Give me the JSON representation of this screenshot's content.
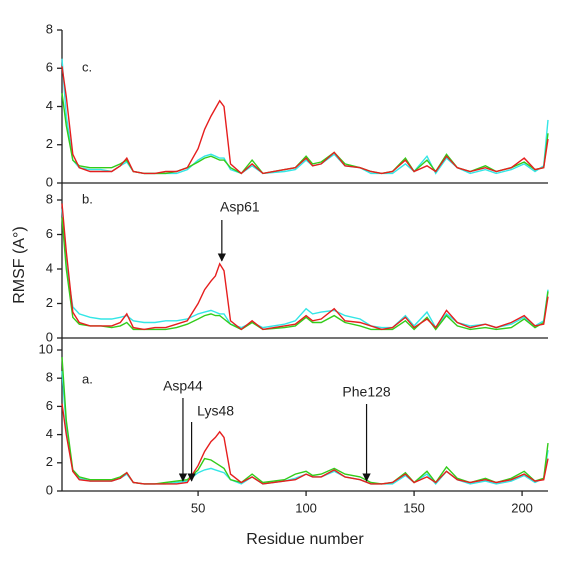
{
  "chart_data": [
    {
      "type": "line",
      "title": "c.",
      "x": [
        -13,
        -11,
        -8,
        -5,
        0,
        5,
        10,
        14,
        17,
        20,
        25,
        30,
        35,
        40,
        45,
        50,
        53,
        56,
        58,
        60,
        62,
        65,
        70,
        75,
        80,
        90,
        95,
        100,
        103,
        107,
        113,
        118,
        125,
        130,
        135,
        140,
        146,
        150,
        156,
        160,
        165,
        170,
        176,
        183,
        188,
        195,
        201,
        206,
        210,
        212
      ],
      "xlim": [
        -13,
        212
      ],
      "ylim": [
        0,
        8
      ],
      "yticks": [
        0,
        2,
        4,
        6,
        8
      ],
      "series": [
        {
          "color": "#33e6e6",
          "values": [
            6.5,
            3.5,
            1.2,
            0.8,
            0.7,
            0.7,
            0.6,
            0.9,
            1.1,
            0.6,
            0.5,
            0.5,
            0.5,
            0.5,
            0.7,
            1.2,
            1.4,
            1.5,
            1.4,
            1.3,
            1.3,
            0.7,
            0.5,
            0.9,
            0.5,
            0.6,
            0.7,
            1.2,
            0.9,
            1.0,
            1.5,
            0.9,
            0.8,
            0.5,
            0.5,
            0.5,
            1.0,
            0.6,
            1.4,
            0.5,
            1.3,
            0.8,
            0.5,
            0.7,
            0.5,
            0.7,
            1.0,
            0.6,
            0.9,
            3.3
          ]
        },
        {
          "color": "#33cc1a",
          "values": [
            4.7,
            3.0,
            1.2,
            0.9,
            0.8,
            0.8,
            0.8,
            1.0,
            1.2,
            0.6,
            0.5,
            0.5,
            0.5,
            0.6,
            0.8,
            1.1,
            1.3,
            1.4,
            1.3,
            1.2,
            1.2,
            0.8,
            0.5,
            1.2,
            0.5,
            0.7,
            0.8,
            1.4,
            1.0,
            1.1,
            1.6,
            1.0,
            0.8,
            0.6,
            0.5,
            0.6,
            1.3,
            0.6,
            1.2,
            0.6,
            1.5,
            0.8,
            0.6,
            0.9,
            0.6,
            0.8,
            1.1,
            0.7,
            0.8,
            2.6
          ]
        },
        {
          "color": "#e61e1e",
          "values": [
            6.1,
            4.5,
            1.5,
            0.8,
            0.6,
            0.6,
            0.6,
            0.9,
            1.3,
            0.6,
            0.5,
            0.5,
            0.6,
            0.6,
            0.8,
            1.8,
            2.8,
            3.5,
            3.9,
            4.3,
            4.0,
            1.0,
            0.5,
            1.0,
            0.5,
            0.7,
            0.8,
            1.3,
            0.9,
            1.0,
            1.6,
            0.9,
            0.8,
            0.6,
            0.5,
            0.6,
            1.2,
            0.6,
            0.9,
            0.6,
            1.4,
            0.8,
            0.6,
            0.8,
            0.6,
            0.8,
            1.3,
            0.7,
            0.8,
            2.3
          ]
        }
      ]
    },
    {
      "type": "line",
      "title": "b.",
      "ylabel": "RMSF (A°)",
      "x": [
        -13,
        -11,
        -8,
        -5,
        0,
        5,
        10,
        14,
        17,
        20,
        25,
        30,
        35,
        40,
        45,
        50,
        53,
        56,
        58,
        60,
        62,
        65,
        70,
        75,
        80,
        90,
        95,
        100,
        103,
        107,
        113,
        118,
        125,
        130,
        135,
        140,
        146,
        150,
        156,
        160,
        165,
        170,
        176,
        183,
        188,
        195,
        201,
        206,
        210,
        212
      ],
      "xlim": [
        -13,
        212
      ],
      "ylim": [
        0,
        8
      ],
      "yticks": [
        0,
        2,
        4,
        6,
        8
      ],
      "annotations": [
        {
          "text": "Asp61",
          "x": 61,
          "y": 4.3
        }
      ],
      "series": [
        {
          "color": "#33e6e6",
          "values": [
            7.5,
            4.2,
            1.8,
            1.4,
            1.2,
            1.1,
            1.1,
            1.2,
            1.3,
            1.0,
            0.9,
            0.9,
            1.0,
            1.0,
            1.1,
            1.4,
            1.5,
            1.6,
            1.5,
            1.4,
            1.4,
            0.8,
            0.6,
            0.9,
            0.6,
            0.8,
            1.0,
            1.7,
            1.4,
            1.5,
            1.6,
            1.3,
            1.1,
            0.7,
            0.6,
            0.6,
            1.3,
            0.7,
            1.5,
            0.6,
            1.4,
            0.9,
            0.7,
            0.8,
            0.6,
            0.8,
            1.2,
            0.7,
            1.0,
            2.8
          ]
        },
        {
          "color": "#33cc1a",
          "values": [
            7.0,
            4.0,
            1.2,
            0.8,
            0.7,
            0.7,
            0.6,
            0.7,
            0.9,
            0.5,
            0.5,
            0.5,
            0.5,
            0.6,
            0.8,
            1.1,
            1.3,
            1.4,
            1.3,
            1.3,
            1.1,
            0.8,
            0.5,
            0.9,
            0.5,
            0.6,
            0.7,
            1.2,
            0.9,
            0.9,
            1.3,
            0.9,
            0.7,
            0.5,
            0.5,
            0.5,
            1.0,
            0.5,
            1.2,
            0.5,
            1.3,
            0.7,
            0.5,
            0.6,
            0.5,
            0.6,
            1.1,
            0.6,
            0.9,
            2.7
          ]
        },
        {
          "color": "#e61e1e",
          "values": [
            7.8,
            5.0,
            1.5,
            0.9,
            0.7,
            0.7,
            0.7,
            0.9,
            1.4,
            0.6,
            0.5,
            0.6,
            0.6,
            0.8,
            1.0,
            2.0,
            2.8,
            3.3,
            3.6,
            4.3,
            3.9,
            1.0,
            0.5,
            1.0,
            0.5,
            0.7,
            0.8,
            1.3,
            1.0,
            1.1,
            1.7,
            1.0,
            0.9,
            0.7,
            0.5,
            0.6,
            1.2,
            0.6,
            1.1,
            0.6,
            1.6,
            0.9,
            0.6,
            0.8,
            0.6,
            0.9,
            1.3,
            0.7,
            0.8,
            2.4
          ]
        }
      ]
    },
    {
      "type": "line",
      "title": "a.",
      "xlabel": "Residue number",
      "x": [
        -13,
        -11,
        -8,
        -5,
        0,
        5,
        10,
        14,
        17,
        20,
        25,
        30,
        35,
        40,
        45,
        50,
        53,
        56,
        58,
        60,
        62,
        65,
        70,
        75,
        80,
        90,
        95,
        100,
        103,
        107,
        113,
        118,
        125,
        130,
        135,
        140,
        146,
        150,
        156,
        160,
        165,
        170,
        176,
        183,
        188,
        195,
        201,
        206,
        210,
        212
      ],
      "xlim": [
        -13,
        212
      ],
      "xticks": [
        50,
        100,
        150,
        200
      ],
      "ylim": [
        0,
        10
      ],
      "yticks": [
        0,
        2,
        4,
        6,
        8,
        10
      ],
      "annotations": [
        {
          "text": "Asp44",
          "x": 43,
          "y": 0.5
        },
        {
          "text": "Lys48",
          "x": 47,
          "y": 0.5
        },
        {
          "text": "Phe128",
          "x": 128,
          "y": 0.5
        }
      ],
      "series": [
        {
          "color": "#33e6e6",
          "values": [
            8.5,
            4.5,
            1.4,
            0.9,
            0.7,
            0.7,
            0.7,
            0.9,
            1.2,
            0.6,
            0.5,
            0.5,
            0.5,
            0.6,
            0.7,
            1.3,
            1.5,
            1.6,
            1.5,
            1.4,
            1.3,
            0.8,
            0.5,
            1.0,
            0.5,
            0.7,
            0.9,
            1.2,
            1.0,
            1.0,
            1.4,
            1.0,
            0.8,
            0.5,
            0.5,
            0.5,
            1.1,
            0.6,
            1.2,
            0.5,
            1.4,
            0.8,
            0.5,
            0.7,
            0.5,
            0.7,
            1.1,
            0.6,
            0.9,
            2.9
          ]
        },
        {
          "color": "#33cc1a",
          "values": [
            9.5,
            5.0,
            1.5,
            1.0,
            0.8,
            0.8,
            0.8,
            1.0,
            1.3,
            0.6,
            0.5,
            0.5,
            0.6,
            0.7,
            0.8,
            1.5,
            2.3,
            2.2,
            2.0,
            1.8,
            1.6,
            0.8,
            0.6,
            1.2,
            0.6,
            0.8,
            1.2,
            1.4,
            1.1,
            1.2,
            1.6,
            1.2,
            1.0,
            0.6,
            0.5,
            0.6,
            1.3,
            0.6,
            1.4,
            0.6,
            1.7,
            0.9,
            0.6,
            0.9,
            0.6,
            0.9,
            1.4,
            0.7,
            0.9,
            3.4
          ]
        },
        {
          "color": "#e61e1e",
          "values": [
            6.2,
            4.0,
            1.4,
            0.8,
            0.7,
            0.7,
            0.7,
            0.9,
            1.3,
            0.6,
            0.5,
            0.5,
            0.5,
            0.5,
            0.6,
            1.8,
            2.8,
            3.5,
            3.8,
            4.2,
            3.8,
            1.2,
            0.6,
            1.0,
            0.5,
            0.7,
            0.8,
            1.2,
            1.0,
            1.0,
            1.5,
            1.0,
            0.8,
            0.5,
            0.5,
            0.6,
            1.2,
            0.6,
            1.0,
            0.6,
            1.4,
            0.8,
            0.6,
            0.8,
            0.6,
            0.8,
            1.2,
            0.7,
            0.8,
            2.3
          ]
        }
      ]
    }
  ]
}
